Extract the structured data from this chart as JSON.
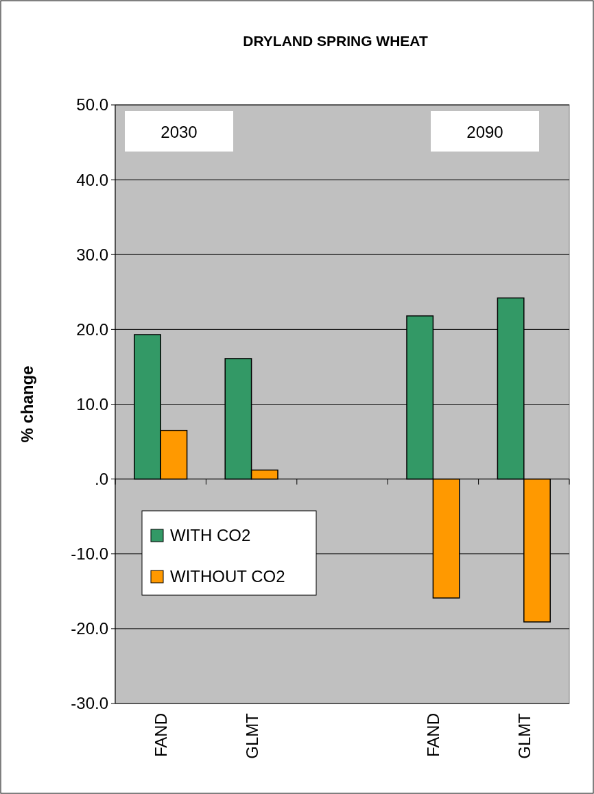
{
  "chart_data": {
    "type": "bar",
    "title": "DRYLAND SPRING WHEAT",
    "ylabel": "% change",
    "categories": [
      "FAND",
      "GLMT",
      null,
      "FAND",
      "GLMT"
    ],
    "series": [
      {
        "name": "WITH CO2",
        "color": "#339966",
        "values": [
          19.3,
          16.1,
          null,
          21.8,
          24.2
        ]
      },
      {
        "name": "WITHOUT CO2",
        "color": "#ff9900",
        "values": [
          6.5,
          1.2,
          null,
          -15.9,
          -19.1
        ]
      }
    ],
    "ylim": [
      -30,
      50
    ],
    "yticks": [
      {
        "value": -30,
        "label": "-30.0"
      },
      {
        "value": -20,
        "label": "-20.0"
      },
      {
        "value": -10,
        "label": "-10.0"
      },
      {
        "value": 0,
        "label": ".0"
      },
      {
        "value": 10,
        "label": "10.0"
      },
      {
        "value": 20,
        "label": "20.0"
      },
      {
        "value": 30,
        "label": "30.0"
      },
      {
        "value": 40,
        "label": "40.0"
      },
      {
        "value": 50,
        "label": "50.0"
      }
    ],
    "annotations": [
      "2030",
      "2090"
    ],
    "grid": "y",
    "legend": "left"
  }
}
